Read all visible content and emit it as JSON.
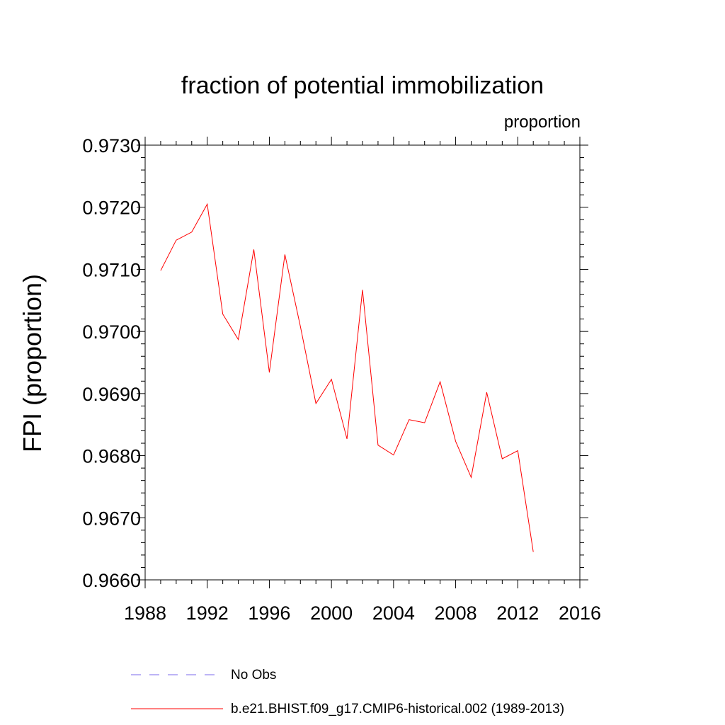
{
  "colors": {
    "series": "#ff0000",
    "no_obs": "#7b68ee",
    "axis": "#000000"
  },
  "chart_data": {
    "type": "line",
    "title": "fraction of potential immobilization",
    "units_label": "proportion",
    "xlabel": "",
    "ylabel": "FPI  (proportion)",
    "xlim": [
      1988,
      2016
    ],
    "ylim": [
      0.966,
      0.973
    ],
    "x_ticks": [
      "1988",
      "1992",
      "1996",
      "2000",
      "2004",
      "2008",
      "2012",
      "2016"
    ],
    "y_ticks": [
      "0.9660",
      "0.9670",
      "0.9680",
      "0.9690",
      "0.9700",
      "0.9710",
      "0.9720",
      "0.9730"
    ],
    "series": [
      {
        "name": "b.e21.BHIST.f09_g17.CMIP6-historical.002 (1989-2013)",
        "style": "solid",
        "x": [
          1989,
          1990,
          1991,
          1992,
          1993,
          1994,
          1995,
          1996,
          1997,
          1998,
          1999,
          2000,
          2001,
          2002,
          2003,
          2004,
          2005,
          2006,
          2007,
          2008,
          2009,
          2010,
          2011,
          2012,
          2013
        ],
        "values": [
          0.97098,
          0.97147,
          0.9716,
          0.97205,
          0.97028,
          0.96987,
          0.97132,
          0.96934,
          0.97124,
          0.97008,
          0.96884,
          0.96923,
          0.96827,
          0.97067,
          0.96817,
          0.96801,
          0.96858,
          0.96853,
          0.96919,
          0.96823,
          0.96765,
          0.96902,
          0.96795,
          0.96808,
          0.96645
        ]
      }
    ],
    "legend": [
      {
        "label": "No Obs",
        "style": "dashed"
      },
      {
        "label": "b.e21.BHIST.f09_g17.CMIP6-historical.002 (1989-2013)",
        "style": "solid"
      }
    ]
  }
}
